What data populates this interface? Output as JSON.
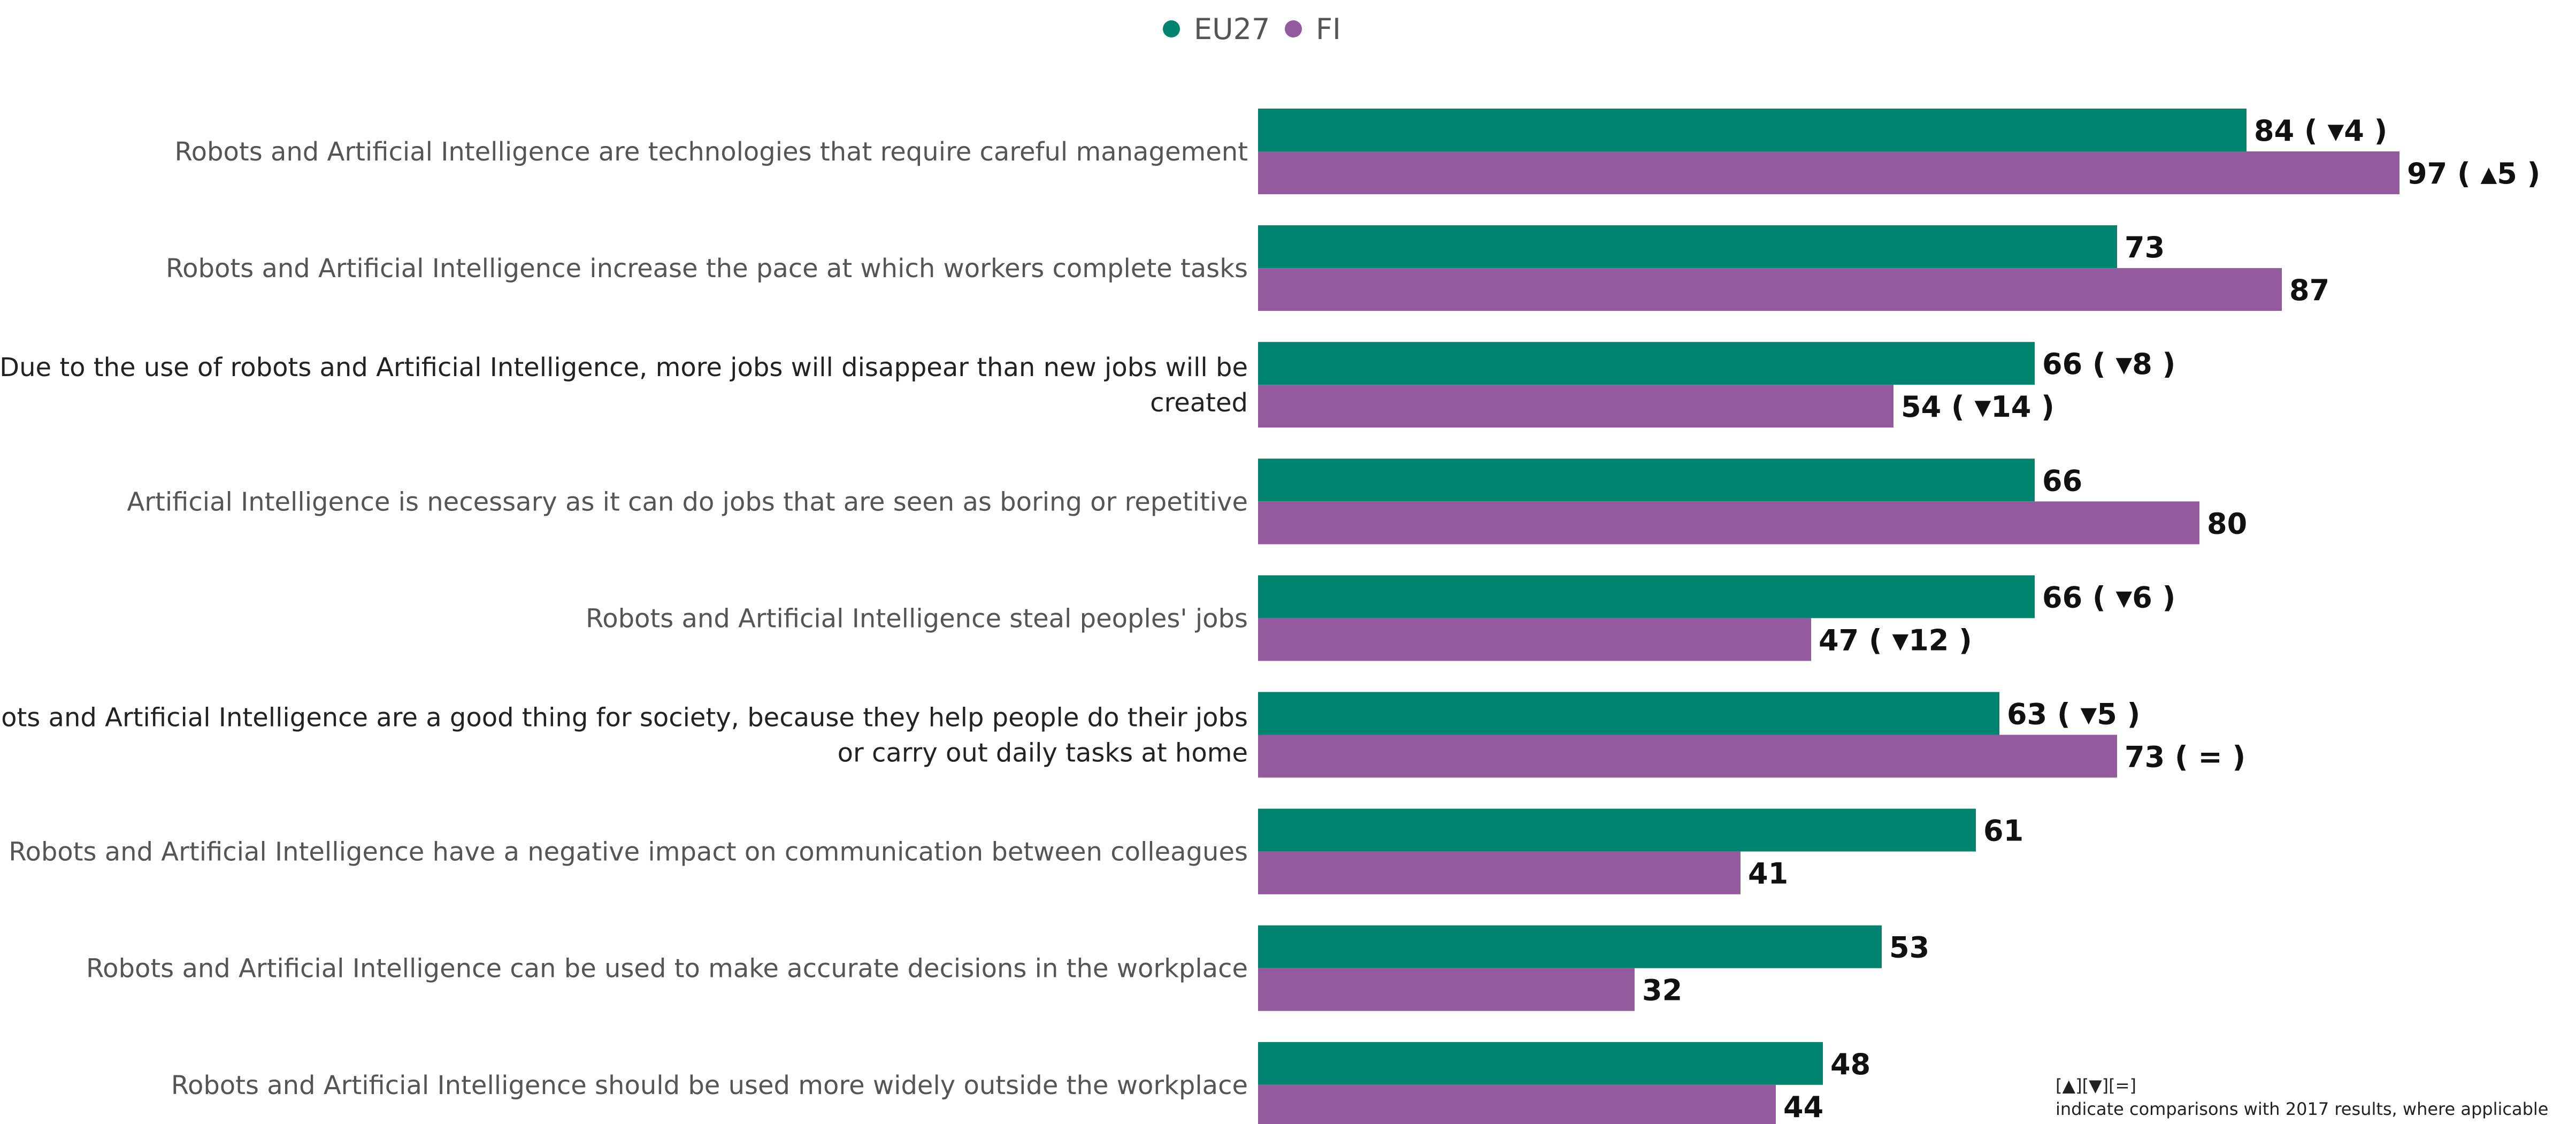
{
  "chart_data": {
    "type": "bar",
    "orientation": "horizontal",
    "legend_position": "top-center",
    "grid": false,
    "xlim": [
      0,
      100
    ],
    "categories": [
      [
        "Robots and Artificial Intelligence are technologies that require careful management"
      ],
      [
        "Robots and Artificial Intelligence increase the pace at which workers complete tasks"
      ],
      [
        "Due to the use of robots and Artificial Intelligence, more jobs will disappear than new jobs will be",
        "created"
      ],
      [
        "Artificial Intelligence is necessary as it can do jobs that are seen as boring or repetitive"
      ],
      [
        "Robots and Artificial Intelligence steal peoples' jobs"
      ],
      [
        "Robots and Artificial Intelligence are a good thing for society, because they help people do their jobs",
        "or carry out daily tasks at home"
      ],
      [
        "Robots and Artificial Intelligence have a negative impact on communication between colleagues"
      ],
      [
        "Robots and Artificial Intelligence can be used to make accurate decisions in the workplace"
      ],
      [
        "Robots and Artificial Intelligence should be used more widely outside the workplace"
      ]
    ],
    "series": [
      {
        "name": "EU27",
        "color": "#00836f",
        "values": [
          84,
          73,
          66,
          66,
          66,
          63,
          61,
          53,
          48
        ],
        "change": [
          {
            "dir": "down",
            "value": 4
          },
          null,
          {
            "dir": "down",
            "value": 8
          },
          null,
          {
            "dir": "down",
            "value": 6
          },
          {
            "dir": "down",
            "value": 5
          },
          null,
          null,
          null
        ]
      },
      {
        "name": "FI",
        "color": "#935b9e",
        "values": [
          97,
          87,
          54,
          80,
          47,
          73,
          41,
          32,
          44
        ],
        "change": [
          {
            "dir": "up",
            "value": 5
          },
          null,
          {
            "dir": "down",
            "value": 14
          },
          null,
          {
            "dir": "down",
            "value": 12
          },
          {
            "dir": "equal"
          },
          null,
          null,
          null
        ]
      }
    ],
    "note": {
      "symbols": "[▲][▼][=]",
      "text": "indicate comparisons with 2017 results, where applicable"
    }
  }
}
